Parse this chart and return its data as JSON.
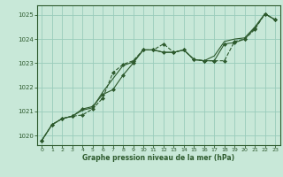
{
  "title": "Graphe pression niveau de la mer (hPa)",
  "background_color": "#c8e8d8",
  "grid_color": "#99ccbb",
  "line_color": "#2d5a2d",
  "xlim": [
    -0.5,
    23.5
  ],
  "ylim": [
    1019.6,
    1025.4
  ],
  "yticks": [
    1020,
    1021,
    1022,
    1023,
    1024,
    1025
  ],
  "xticks": [
    0,
    1,
    2,
    3,
    4,
    5,
    6,
    7,
    8,
    9,
    10,
    11,
    12,
    13,
    14,
    15,
    16,
    17,
    18,
    19,
    20,
    21,
    22,
    23
  ],
  "series1_x": [
    0,
    1,
    2,
    3,
    4,
    5,
    6,
    7,
    8,
    9,
    10,
    11,
    12,
    13,
    14,
    15,
    16,
    17,
    18,
    19,
    20,
    21,
    22,
    23
  ],
  "series1_y": [
    1019.8,
    1020.45,
    1020.7,
    1020.8,
    1020.85,
    1021.1,
    1021.55,
    1022.6,
    1022.95,
    1023.1,
    1023.55,
    1023.55,
    1023.8,
    1023.45,
    1023.55,
    1023.15,
    1023.1,
    1023.1,
    1023.1,
    1023.9,
    1024.0,
    1024.4,
    1025.05,
    1024.8
  ],
  "series2_x": [
    0,
    1,
    2,
    3,
    4,
    5,
    6,
    7,
    8,
    9,
    10,
    11,
    12,
    13,
    14,
    15,
    16,
    17,
    18,
    19,
    20,
    21,
    22,
    23
  ],
  "series2_y": [
    1019.8,
    1020.45,
    1020.7,
    1020.8,
    1021.1,
    1021.2,
    1021.7,
    1021.9,
    1022.5,
    1023.0,
    1023.55,
    1023.55,
    1023.45,
    1023.45,
    1023.55,
    1023.15,
    1023.1,
    1023.1,
    1023.8,
    1023.85,
    1024.0,
    1024.45,
    1025.05,
    1024.8
  ],
  "series3_x": [
    0,
    1,
    2,
    3,
    4,
    5,
    6,
    7,
    8,
    9,
    10,
    11,
    12,
    13,
    14,
    15,
    16,
    17,
    18,
    19,
    20,
    21,
    22,
    23
  ],
  "series3_y": [
    1019.8,
    1020.45,
    1020.7,
    1020.8,
    1021.05,
    1021.15,
    1021.8,
    1022.35,
    1022.9,
    1023.05,
    1023.55,
    1023.55,
    1023.45,
    1023.45,
    1023.55,
    1023.15,
    1023.1,
    1023.3,
    1023.9,
    1024.0,
    1024.05,
    1024.5,
    1025.05,
    1024.8
  ]
}
